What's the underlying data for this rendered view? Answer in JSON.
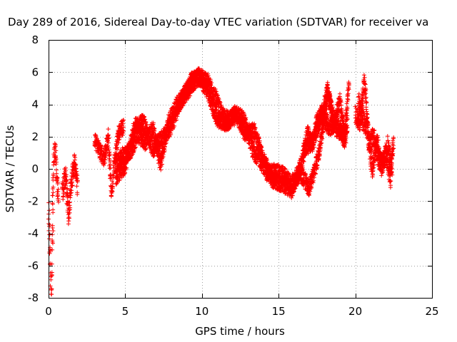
{
  "chart_data": {
    "type": "scatter",
    "title": "Day 289 of 2016, Sidereal Day-to-day VTEC variation (SDTVAR) for receiver va",
    "xlabel": "GPS time / hours",
    "ylabel": "SDTVAR / TECUs",
    "xlim": [
      0,
      25
    ],
    "ylim": [
      -8,
      8
    ],
    "xticks": [
      "0",
      "5",
      "10",
      "15",
      "20",
      "25"
    ],
    "yticks": [
      "-8",
      "-6",
      "-4",
      "-2",
      "0",
      "2",
      "4",
      "6",
      "8"
    ],
    "grid": true,
    "legend": "none",
    "marker": "plus",
    "series": [
      {
        "name": "SDTVAR",
        "color": "#ff0000",
        "segments": [
          {
            "x": [
              0.0,
              0.06,
              0.12,
              0.18,
              0.24,
              0.3
            ],
            "y": [
              -2.4,
              -4.0,
              -6.5,
              -7.9,
              -5.0,
              -2.7
            ],
            "noise": 0.9
          },
          {
            "x": [
              0.25,
              0.35,
              0.45,
              0.55,
              0.65
            ],
            "y": [
              -2.0,
              0.8,
              1.2,
              -0.9,
              -1.8
            ],
            "noise": 0.6
          },
          {
            "x": [
              0.9,
              1.1,
              1.3,
              1.5,
              1.7,
              1.9
            ],
            "y": [
              -1.5,
              -0.4,
              -2.8,
              -0.8,
              0.3,
              -1.2
            ],
            "noise": 0.7
          },
          {
            "x": [
              3.0,
              3.3,
              3.6,
              3.9,
              4.1,
              4.3,
              4.6,
              4.9
            ],
            "y": [
              1.8,
              1.2,
              0.6,
              2.0,
              -1.6,
              0.5,
              2.3,
              2.6
            ],
            "noise": 0.5
          },
          {
            "x": [
              4.3,
              4.8,
              5.3,
              5.8,
              6.3,
              6.8,
              7.3,
              7.8,
              8.3,
              8.8,
              9.3,
              9.8,
              10.3,
              10.8,
              11.3,
              11.8,
              12.3,
              12.8,
              13.3,
              13.8,
              14.3,
              14.8,
              15.3,
              15.8,
              16.3,
              16.8,
              17.3,
              17.8,
              18.3,
              18.8,
              19.3,
              19.5
            ],
            "y": [
              0.3,
              0.8,
              1.0,
              2.2,
              1.7,
              2.5,
              0.3,
              2.8,
              3.8,
              4.6,
              5.4,
              5.7,
              5.5,
              4.6,
              3.3,
              3.0,
              3.4,
              2.9,
              1.2,
              0.6,
              -0.3,
              -0.2,
              -0.4,
              -1.0,
              -0.3,
              1.4,
              1.8,
              3.4,
              2.6,
              2.9,
              1.8,
              3.0
            ],
            "noise": 0.55
          },
          {
            "x": [
              4.4,
              5.0,
              5.6,
              6.2,
              6.8,
              7.4,
              8.0,
              8.6,
              9.2,
              9.8,
              10.4,
              11.0,
              11.6,
              12.2,
              12.8,
              13.4,
              14.0,
              14.6,
              15.2,
              15.8,
              16.4,
              17.0,
              17.6,
              18.2,
              18.8,
              19.4
            ],
            "y": [
              -0.5,
              0.2,
              2.6,
              2.9,
              1.2,
              1.9,
              2.6,
              4.2,
              5.0,
              5.8,
              4.7,
              3.1,
              2.8,
              3.5,
              2.2,
              2.4,
              0.6,
              -0.7,
              -0.9,
              -1.4,
              -0.2,
              -1.2,
              0.8,
              4.6,
              2.4,
              2.1
            ],
            "noise": 0.5
          },
          {
            "x": [
              16.6,
              16.9,
              17.2,
              17.5,
              17.9,
              18.2,
              18.6,
              19.0,
              19.3,
              19.6
            ],
            "y": [
              1.0,
              2.2,
              1.5,
              3.0,
              3.6,
              5.0,
              2.8,
              4.2,
              2.2,
              5.5
            ],
            "noise": 0.5
          },
          {
            "x": [
              20.0,
              20.3,
              20.6,
              20.9,
              21.2,
              21.5,
              21.8,
              22.1,
              22.4
            ],
            "y": [
              3.5,
              2.8,
              5.5,
              1.4,
              2.1,
              0.6,
              0.3,
              1.5,
              0.0
            ],
            "noise": 0.6
          },
          {
            "x": [
              20.2,
              20.5,
              20.8,
              21.1,
              21.4,
              21.7,
              22.0,
              22.3,
              22.5
            ],
            "y": [
              4.2,
              3.0,
              2.4,
              -0.1,
              1.8,
              0.1,
              1.0,
              -0.6,
              2.0
            ],
            "noise": 0.6
          }
        ]
      }
    ]
  }
}
